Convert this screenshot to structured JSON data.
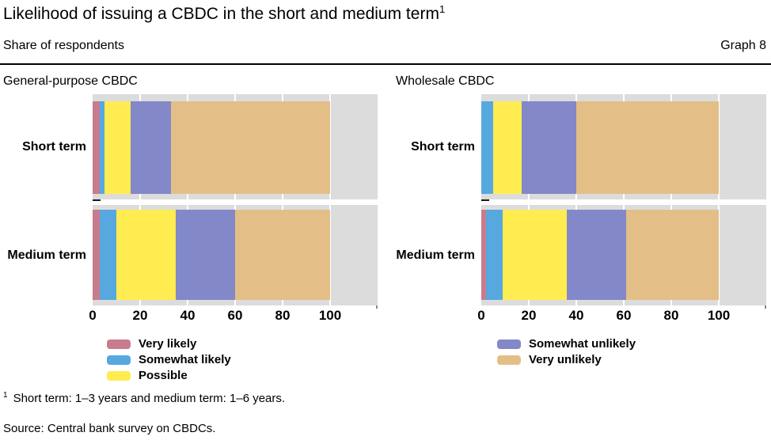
{
  "header": {
    "title": "Likelihood of issuing a CBDC in the short and medium term",
    "title_superscript": "1",
    "subtitle": "Share of respondents",
    "graph_label": "Graph 8"
  },
  "colors": {
    "very_likely": "#c87c8e",
    "somewhat_likely": "#58a8e0",
    "possible": "#ffec50",
    "somewhat_unlikely": "#8388c9",
    "very_unlikely": "#e3bf87",
    "plot_background": "#dcdcdc",
    "gridline": "#ffffff",
    "rule": "#000000"
  },
  "chart_data": [
    {
      "type": "bar",
      "stacked": true,
      "orientation": "horizontal",
      "title": "General-purpose CBDC",
      "categories": [
        "Short term",
        "Medium term"
      ],
      "series": [
        {
          "name": "Very likely",
          "color": "#c87c8e",
          "values": [
            3,
            3
          ]
        },
        {
          "name": "Somewhat likely",
          "color": "#58a8e0",
          "values": [
            2,
            7
          ]
        },
        {
          "name": "Possible",
          "color": "#ffec50",
          "values": [
            11,
            25
          ]
        },
        {
          "name": "Somewhat unlikely",
          "color": "#8388c9",
          "values": [
            17,
            25
          ]
        },
        {
          "name": "Very unlikely",
          "color": "#e3bf87",
          "values": [
            67,
            40
          ]
        }
      ],
      "xlim": [
        0,
        120
      ],
      "xticks": [
        0,
        20,
        40,
        60,
        80,
        100
      ],
      "grid": true,
      "unit": "percent of respondents"
    },
    {
      "type": "bar",
      "stacked": true,
      "orientation": "horizontal",
      "title": "Wholesale CBDC",
      "categories": [
        "Short term",
        "Medium term"
      ],
      "series": [
        {
          "name": "Very likely",
          "color": "#c87c8e",
          "values": [
            0,
            2
          ]
        },
        {
          "name": "Somewhat likely",
          "color": "#58a8e0",
          "values": [
            5,
            7
          ]
        },
        {
          "name": "Possible",
          "color": "#ffec50",
          "values": [
            12,
            27
          ]
        },
        {
          "name": "Somewhat unlikely",
          "color": "#8388c9",
          "values": [
            23,
            25
          ]
        },
        {
          "name": "Very unlikely",
          "color": "#e3bf87",
          "values": [
            60,
            39
          ]
        }
      ],
      "xlim": [
        0,
        120
      ],
      "xticks": [
        0,
        20,
        40,
        60,
        80,
        100
      ],
      "grid": true,
      "unit": "percent of respondents"
    }
  ],
  "legend": {
    "left": [
      {
        "label": "Very likely",
        "color": "#c87c8e"
      },
      {
        "label": "Somewhat likely",
        "color": "#58a8e0"
      },
      {
        "label": "Possible",
        "color": "#ffec50"
      }
    ],
    "right": [
      {
        "label": "Somewhat unlikely",
        "color": "#8388c9"
      },
      {
        "label": "Very unlikely",
        "color": "#e3bf87"
      }
    ]
  },
  "footnote": {
    "marker": "1",
    "text": "Short term: 1–3 years and medium term: 1–6 years."
  },
  "source": "Source: Central bank survey on CBDCs."
}
